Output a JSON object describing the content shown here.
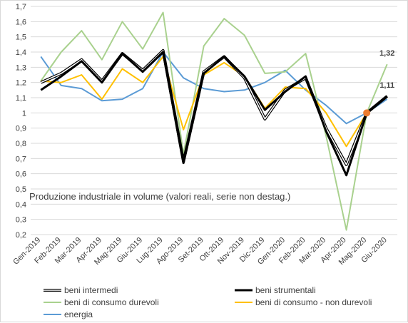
{
  "chart_data": {
    "type": "line",
    "title": "",
    "annotation": "Produzione  industriale in volume (valori reali, serie non destag.)",
    "xlabel": "",
    "ylabel": "",
    "ylim": [
      0.2,
      1.7
    ],
    "yticks": [
      "0,2",
      "0,3",
      "0,4",
      "0,5",
      "0,6",
      "0,7",
      "0,8",
      "0,9",
      "1",
      "1,1",
      "1,2",
      "1,3",
      "1,4",
      "1,5",
      "1,6",
      "1,7"
    ],
    "grid": "horizontal",
    "legend_position": "bottom",
    "categories": [
      "Gen-2019",
      "Feb-2019",
      "Mar-2019",
      "Apr-2019",
      "Mag-2019",
      "Giu-2019",
      "Lug-2019",
      "Ago-2019",
      "Set-2019",
      "Ott-2019",
      "Nov-2019",
      "Dic-2019",
      "Gen-2020",
      "Feb-2020",
      "Mar-2020",
      "Apr-2020",
      "Mag-2020",
      "Giu-2020"
    ],
    "series": [
      {
        "name": "beni intermedi",
        "color": "#000000",
        "style": "double",
        "values": [
          1.2,
          1.26,
          1.35,
          1.21,
          1.39,
          1.28,
          1.41,
          0.68,
          1.27,
          1.37,
          1.23,
          0.96,
          1.15,
          1.23,
          0.9,
          0.66,
          1.0,
          1.11
        ]
      },
      {
        "name": "beni strumentali",
        "color": "#000000",
        "style": "thick",
        "values": [
          1.15,
          1.24,
          1.34,
          1.2,
          1.39,
          1.27,
          1.4,
          0.67,
          1.26,
          1.37,
          1.24,
          1.02,
          1.14,
          1.24,
          0.88,
          0.59,
          1.0,
          1.11
        ]
      },
      {
        "name": "beni di consumo durevoli",
        "color": "#a9d18e",
        "style": "plain",
        "values": [
          1.21,
          1.4,
          1.54,
          1.35,
          1.6,
          1.42,
          1.66,
          0.73,
          1.44,
          1.62,
          1.51,
          1.26,
          1.27,
          1.39,
          0.85,
          0.23,
          1.0,
          1.32
        ]
      },
      {
        "name": "beni di consumo - non durevoli",
        "color": "#ffc000",
        "style": "plain",
        "values": [
          1.21,
          1.2,
          1.25,
          1.09,
          1.29,
          1.2,
          1.37,
          0.89,
          1.25,
          1.33,
          1.24,
          1.03,
          1.17,
          1.16,
          1.0,
          0.78,
          1.0,
          1.11
        ]
      },
      {
        "name": "energia",
        "color": "#5b9bd5",
        "style": "plain",
        "values": [
          1.37,
          1.18,
          1.16,
          1.08,
          1.09,
          1.16,
          1.4,
          1.23,
          1.16,
          1.14,
          1.15,
          1.2,
          1.28,
          1.15,
          1.05,
          0.93,
          1.0,
          1.09
        ]
      }
    ],
    "data_labels": [
      {
        "text": "1,32",
        "category": "Giu-2020",
        "value": 1.32
      },
      {
        "text": "1,11",
        "category": "Giu-2020",
        "value": 1.11
      }
    ],
    "marker": {
      "category": "Mag-2020",
      "value": 1.0,
      "color": "#ed7d31"
    }
  }
}
